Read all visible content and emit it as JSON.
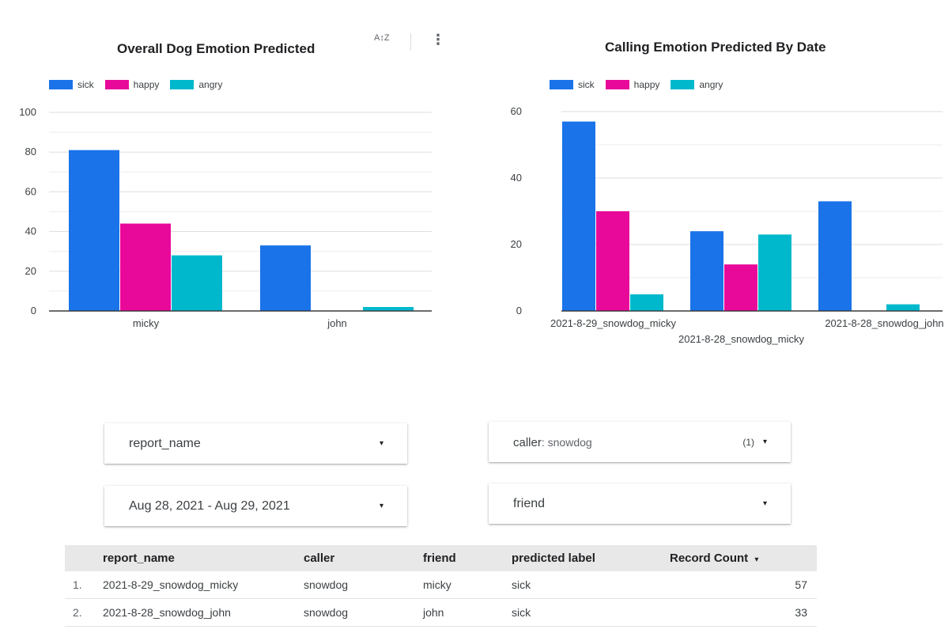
{
  "toolbar": {
    "sort_icon_glyph": "A↕Z",
    "more_icon_glyph": "⋮"
  },
  "chart_data": [
    {
      "type": "bar",
      "title": "Overall Dog Emotion Predicted",
      "categories": [
        "micky",
        "john"
      ],
      "series": [
        {
          "name": "sick",
          "color": "#1a73e8",
          "values": [
            81,
            33
          ]
        },
        {
          "name": "happy",
          "color": "#e8089a",
          "values": [
            44,
            0
          ]
        },
        {
          "name": "angry",
          "color": "#00b8cc",
          "values": [
            28,
            2
          ]
        }
      ],
      "ylim": [
        0,
        100
      ],
      "yticks": [
        0,
        20,
        40,
        60,
        80,
        100
      ],
      "legend_position": "top-left",
      "grid": true
    },
    {
      "type": "bar",
      "title": "Calling Emotion Predicted By Date",
      "categories": [
        "2021-8-29_snowdog_micky",
        "2021-8-28_snowdog_micky",
        "2021-8-28_snowdog_john"
      ],
      "series": [
        {
          "name": "sick",
          "color": "#1a73e8",
          "values": [
            57,
            24,
            33
          ]
        },
        {
          "name": "happy",
          "color": "#e8089a",
          "values": [
            30,
            14,
            0
          ]
        },
        {
          "name": "angry",
          "color": "#00b8cc",
          "values": [
            5,
            23,
            2
          ]
        }
      ],
      "ylim": [
        0,
        60
      ],
      "yticks": [
        0,
        20,
        40,
        60
      ],
      "legend_position": "top-left",
      "grid": true
    }
  ],
  "controls": {
    "report_name": {
      "label": "report_name"
    },
    "caller": {
      "key": "caller",
      "value": ": snowdog",
      "count": "(1)"
    },
    "date_range": {
      "label": "Aug 28, 2021 - Aug 29, 2021"
    },
    "friend": {
      "label": "friend"
    },
    "caret": "▾"
  },
  "table": {
    "headers": [
      "report_name",
      "caller",
      "friend",
      "predicted label",
      "Record Count"
    ],
    "sort_indicator": "▾",
    "rows": [
      {
        "index": "1.",
        "report_name": "2021-8-29_snowdog_micky",
        "caller": "snowdog",
        "friend": "micky",
        "predicted_label": "sick",
        "record_count": "57"
      },
      {
        "index": "2.",
        "report_name": "2021-8-28_snowdog_john",
        "caller": "snowdog",
        "friend": "john",
        "predicted_label": "sick",
        "record_count": "33"
      }
    ]
  }
}
